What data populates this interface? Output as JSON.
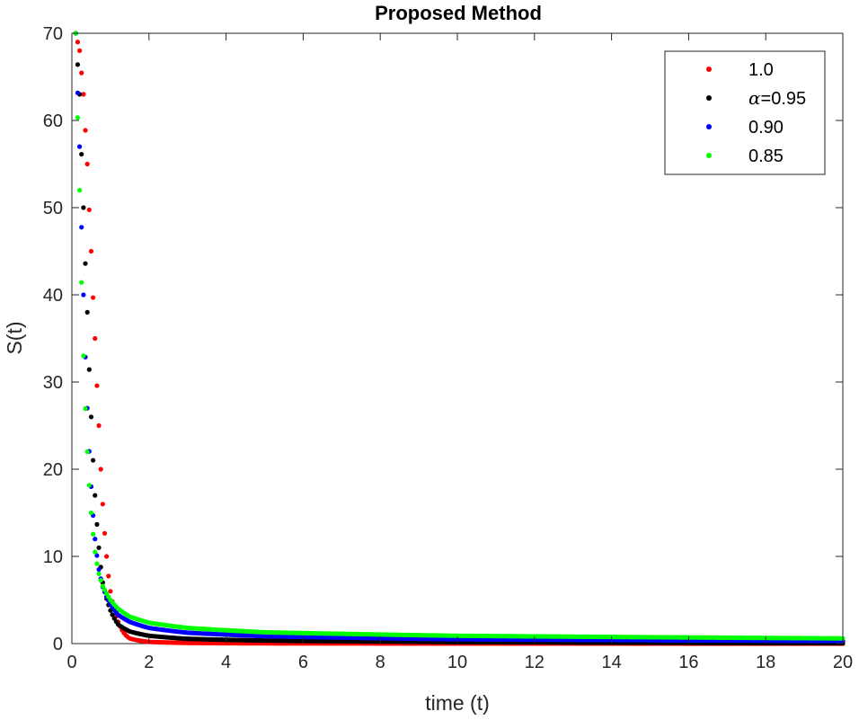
{
  "chart_data": {
    "type": "scatter",
    "title": "Proposed Method",
    "xlabel": "time (t)",
    "ylabel": "S(t)",
    "xlim": [
      0,
      20
    ],
    "ylim": [
      0,
      70
    ],
    "xticks": [
      0,
      2,
      4,
      6,
      8,
      10,
      12,
      14,
      16,
      18,
      20
    ],
    "yticks": [
      0,
      10,
      20,
      30,
      40,
      50,
      60,
      70
    ],
    "grid": false,
    "legend_position": "top-right",
    "legend_alpha_symbol": "α",
    "series": [
      {
        "name": "1.0",
        "color": "#ff0000",
        "points": [
          [
            0.1,
            70
          ],
          [
            0.2,
            68
          ],
          [
            0.3,
            63
          ],
          [
            0.4,
            55
          ],
          [
            0.5,
            45
          ],
          [
            0.6,
            35
          ],
          [
            0.7,
            25
          ],
          [
            0.8,
            16
          ],
          [
            0.9,
            10
          ],
          [
            1.0,
            6
          ],
          [
            1.2,
            2.5
          ],
          [
            1.5,
            0.6
          ],
          [
            2,
            0.2
          ],
          [
            3,
            0.08
          ],
          [
            5,
            0.03
          ],
          [
            10,
            0.01
          ],
          [
            20,
            0.0
          ]
        ]
      },
      {
        "name": "0.95",
        "color": "#000000",
        "points": [
          [
            0.1,
            70
          ],
          [
            0.2,
            63
          ],
          [
            0.3,
            50
          ],
          [
            0.4,
            38
          ],
          [
            0.5,
            26
          ],
          [
            0.6,
            17
          ],
          [
            0.7,
            11
          ],
          [
            0.8,
            7
          ],
          [
            1.0,
            3.8
          ],
          [
            1.2,
            2.2
          ],
          [
            1.5,
            1.4
          ],
          [
            2,
            0.9
          ],
          [
            3,
            0.55
          ],
          [
            5,
            0.35
          ],
          [
            10,
            0.18
          ],
          [
            20,
            0.05
          ]
        ]
      },
      {
        "name": "0.90",
        "color": "#0000ff",
        "points": [
          [
            0.1,
            70
          ],
          [
            0.2,
            57
          ],
          [
            0.3,
            40
          ],
          [
            0.4,
            27
          ],
          [
            0.5,
            18
          ],
          [
            0.6,
            12
          ],
          [
            0.7,
            8.5
          ],
          [
            0.8,
            6.5
          ],
          [
            1.0,
            4.5
          ],
          [
            1.2,
            3.3
          ],
          [
            1.5,
            2.5
          ],
          [
            2,
            1.8
          ],
          [
            3,
            1.25
          ],
          [
            5,
            0.85
          ],
          [
            10,
            0.5
          ],
          [
            20,
            0.3
          ]
        ]
      },
      {
        "name": "0.85",
        "color": "#00ff00",
        "points": [
          [
            0.1,
            70
          ],
          [
            0.2,
            52
          ],
          [
            0.3,
            33
          ],
          [
            0.4,
            22
          ],
          [
            0.5,
            15
          ],
          [
            0.6,
            10.5
          ],
          [
            0.7,
            8
          ],
          [
            0.8,
            6.6
          ],
          [
            1.0,
            5
          ],
          [
            1.2,
            4
          ],
          [
            1.5,
            3.1
          ],
          [
            2,
            2.4
          ],
          [
            3,
            1.8
          ],
          [
            5,
            1.3
          ],
          [
            10,
            0.9
          ],
          [
            20,
            0.6
          ]
        ]
      }
    ]
  }
}
